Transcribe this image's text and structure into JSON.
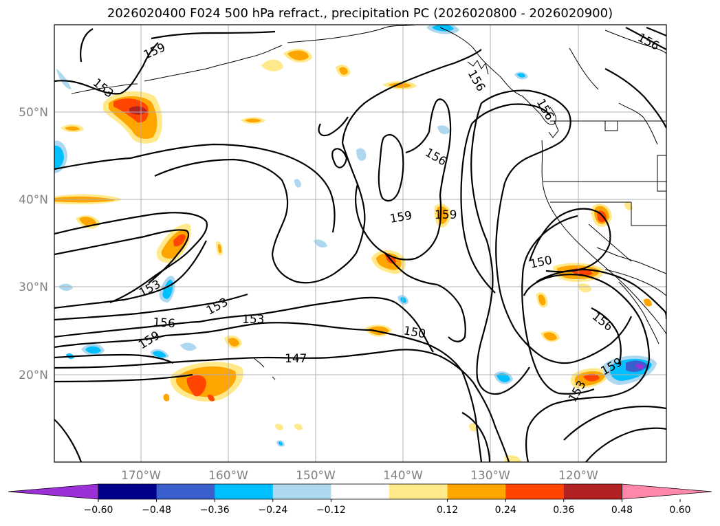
{
  "title": "2026020400 F024 500 hPa refract., precipitation PC (2026020800 - 2026020900)",
  "map": {
    "lat_labels": [
      "50°N",
      "40°N",
      "30°N",
      "20°N"
    ],
    "lon_labels": [
      "170°W",
      "160°W",
      "150°W",
      "140°W",
      "130°W",
      "120°W"
    ],
    "contour_labels": [
      "159",
      "159",
      "159",
      "156",
      "156",
      "156",
      "156",
      "153",
      "153",
      "153",
      "153",
      "150",
      "150",
      "147",
      "159",
      "159",
      "156",
      "156",
      "153"
    ],
    "colors": {
      "coast": "#000000",
      "contour": "#000000",
      "grid": "#b0b0b0"
    }
  },
  "colorbar": {
    "colors": [
      "#9b30d9",
      "#00008b",
      "#3a5fcd",
      "#00bfff",
      "#add8f0",
      "#ffffff",
      "#ffe98a",
      "#ffa500",
      "#ff4500",
      "#b22222",
      "#ff88aa"
    ],
    "tick_labels": [
      "-0.60",
      "-0.48",
      "-0.36",
      "-0.24",
      "-0.12",
      "0.12",
      "0.24",
      "0.36",
      "0.48",
      "0.60"
    ]
  }
}
